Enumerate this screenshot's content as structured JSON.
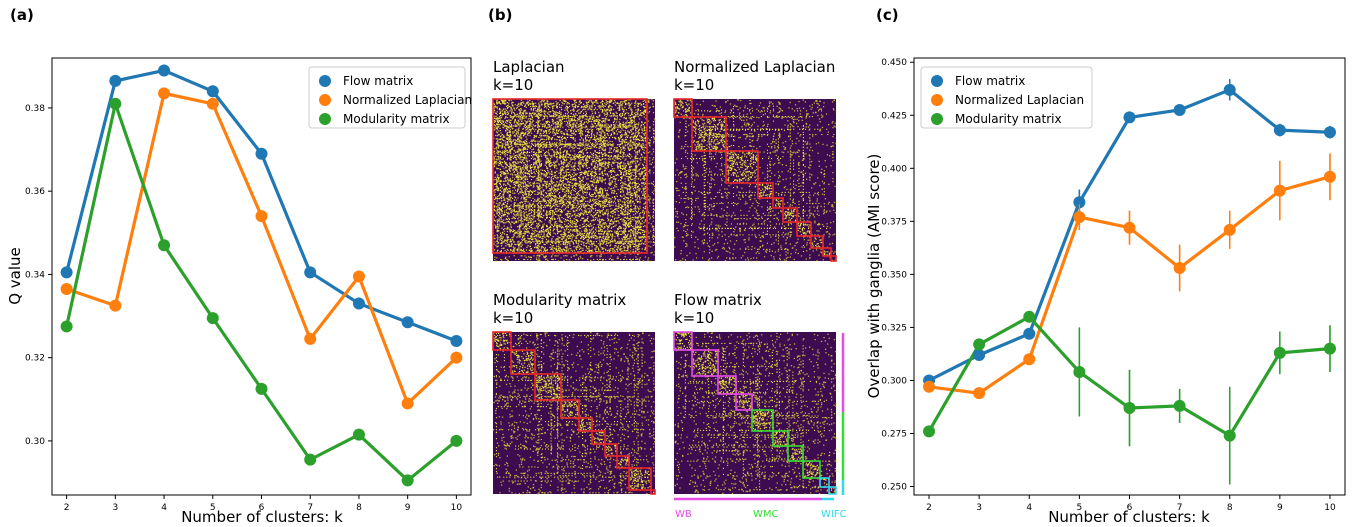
{
  "panels": {
    "a": "(a)",
    "b": "(b)",
    "c": "(c)"
  },
  "colors": {
    "flow": "#1f77b4",
    "laplacian": "#ff7f0e",
    "modularity": "#2ca02c",
    "matrix_bg": "#3d0b4f",
    "matrix_dot": "#e8e23a",
    "box_red": "#e8262a",
    "wb": "#e64ce6",
    "wmc": "#33dd33",
    "wifc": "#33d8e8"
  },
  "matrices": {
    "laplacian": {
      "title": "Laplacian",
      "k": "k=10"
    },
    "normalized": {
      "title": "Normalized Laplacian",
      "k": "k=10"
    },
    "modularity": {
      "title": "Modularity matrix",
      "k": "k=10"
    },
    "flow": {
      "title": "Flow matrix",
      "k": "k=10"
    },
    "labels": {
      "wb": "WB",
      "wmc": "WMC",
      "wifc": "WIFC"
    }
  },
  "chart_data": [
    {
      "type": "line",
      "xlabel": "Number of clusters: k",
      "ylabel": "Q value",
      "x": [
        2,
        3,
        4,
        5,
        6,
        7,
        8,
        9,
        10
      ],
      "ylim": [
        0.287,
        0.392
      ],
      "yticks": [
        "0.30",
        "0.32",
        "0.34",
        "0.36",
        "0.38"
      ],
      "legend_position": "top-right",
      "series": [
        {
          "name": "Flow matrix",
          "color_key": "flow",
          "values": [
            0.3405,
            0.3865,
            0.389,
            0.384,
            0.369,
            0.3405,
            0.333,
            0.3285,
            0.324
          ]
        },
        {
          "name": "Normalized Laplacian",
          "color_key": "laplacian",
          "values": [
            0.3365,
            0.3325,
            0.3835,
            0.381,
            0.354,
            0.3245,
            0.3395,
            0.309,
            0.32
          ]
        },
        {
          "name": "Modularity matrix",
          "color_key": "modularity",
          "values": [
            0.3275,
            0.381,
            0.347,
            0.3295,
            0.3125,
            0.2955,
            0.3015,
            0.2905,
            0.3
          ]
        }
      ]
    },
    {
      "type": "line",
      "xlabel": "Number of clusters: k",
      "ylabel": "Overlap with ganglia (AMI score)",
      "x": [
        2,
        3,
        4,
        5,
        6,
        7,
        8,
        9,
        10
      ],
      "ylim": [
        0.246,
        0.452
      ],
      "yticks": [
        "0.250",
        "0.275",
        "0.300",
        "0.325",
        "0.350",
        "0.375",
        "0.400",
        "0.425",
        "0.450"
      ],
      "legend_position": "top-left",
      "series": [
        {
          "name": "Flow matrix",
          "color_key": "flow",
          "values": [
            0.3,
            0.312,
            0.322,
            0.384,
            0.424,
            0.4275,
            0.437,
            0.418,
            0.417
          ],
          "errors": [
            0.002,
            0.002,
            0.002,
            0.006,
            0.002,
            0.002,
            0.005,
            0.003,
            0.003
          ]
        },
        {
          "name": "Normalized Laplacian",
          "color_key": "laplacian",
          "values": [
            0.297,
            0.294,
            0.31,
            0.377,
            0.372,
            0.353,
            0.371,
            0.3895,
            0.396
          ],
          "errors": [
            0.002,
            0.002,
            0.002,
            0.006,
            0.008,
            0.011,
            0.009,
            0.014,
            0.011
          ]
        },
        {
          "name": "Modularity matrix",
          "color_key": "modularity",
          "values": [
            0.276,
            0.317,
            0.33,
            0.304,
            0.287,
            0.288,
            0.274,
            0.313,
            0.315
          ],
          "errors": [
            0.002,
            0.002,
            0.002,
            0.021,
            0.018,
            0.008,
            0.023,
            0.01,
            0.011
          ]
        }
      ]
    }
  ]
}
